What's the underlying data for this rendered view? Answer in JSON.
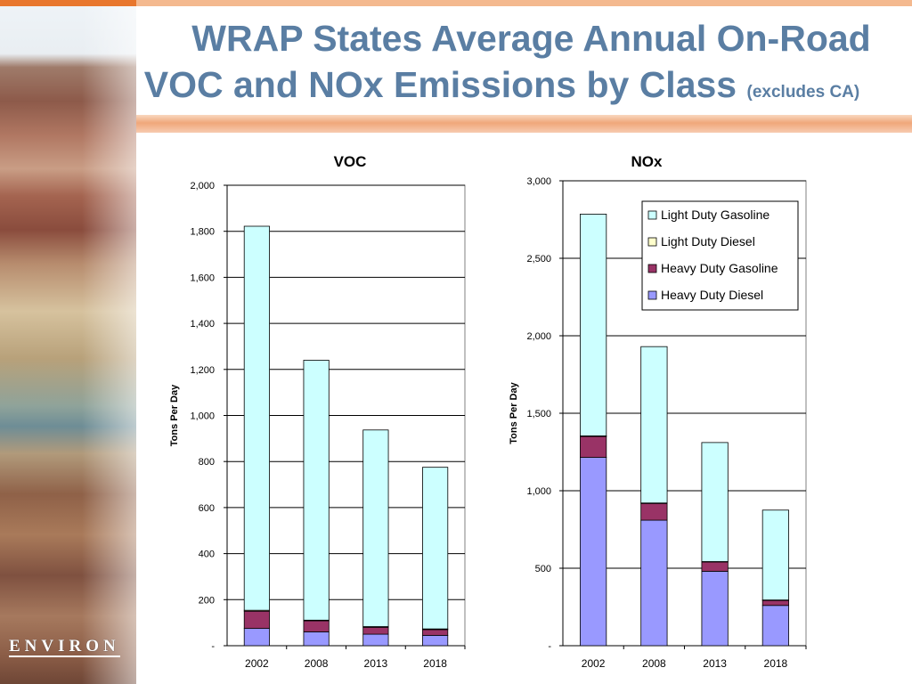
{
  "slide": {
    "title_line1": "WRAP States Average Annual On-Road",
    "title_line2": "VOC and NOx Emissions by Class",
    "title_note": "(excludes CA)",
    "logo_text": "ENVIRON"
  },
  "colors": {
    "light_duty_gasoline": "#ccffff",
    "light_duty_diesel": "#ffffcc",
    "heavy_duty_gasoline": "#993366",
    "heavy_duty_diesel": "#9999ff",
    "title": "#5a7ea3"
  },
  "chart_data": [
    {
      "type": "bar",
      "stacked": true,
      "title": "VOC",
      "xlabel": "",
      "ylabel": "Tons Per Day",
      "categories": [
        "2002",
        "2008",
        "2013",
        "2018"
      ],
      "ylim": [
        0,
        2000
      ],
      "yticks": [
        0,
        200,
        400,
        600,
        800,
        1000,
        1200,
        1400,
        1600,
        1800,
        2000
      ],
      "ytick_labels": [
        "-",
        "200",
        "400",
        "600",
        "800",
        "1,000",
        "1,200",
        "1,400",
        "1,600",
        "1,800",
        "2,000"
      ],
      "grid": true,
      "series": [
        {
          "name": "Heavy Duty Diesel",
          "values": [
            75,
            60,
            50,
            45
          ]
        },
        {
          "name": "Heavy Duty Gasoline",
          "values": [
            75,
            48,
            30,
            25
          ]
        },
        {
          "name": "Light Duty Diesel",
          "values": [
            4,
            3,
            3,
            3
          ]
        },
        {
          "name": "Light Duty Gasoline",
          "values": [
            1668,
            1129,
            854,
            702
          ]
        }
      ]
    },
    {
      "type": "bar",
      "stacked": true,
      "title": "NOx",
      "xlabel": "",
      "ylabel": "Tons Per Day",
      "categories": [
        "2002",
        "2008",
        "2013",
        "2018"
      ],
      "ylim": [
        0,
        3000
      ],
      "yticks": [
        0,
        500,
        1000,
        1500,
        2000,
        2500,
        3000
      ],
      "ytick_labels": [
        "-",
        "500",
        "1,000",
        "1,500",
        "2,000",
        "2,500",
        "3,000"
      ],
      "grid": true,
      "legend": "top-right",
      "legend_entries": [
        "Light Duty Gasoline",
        "Light Duty Diesel",
        "Heavy Duty Gasoline",
        "Heavy Duty Diesel"
      ],
      "series": [
        {
          "name": "Heavy Duty Diesel",
          "values": [
            1215,
            810,
            480,
            260
          ]
        },
        {
          "name": "Heavy Duty Gasoline",
          "values": [
            135,
            108,
            60,
            32
          ]
        },
        {
          "name": "Light Duty Diesel",
          "values": [
            4,
            3,
            3,
            3
          ]
        },
        {
          "name": "Light Duty Gasoline",
          "values": [
            1431,
            1009,
            768,
            580
          ]
        }
      ]
    }
  ]
}
